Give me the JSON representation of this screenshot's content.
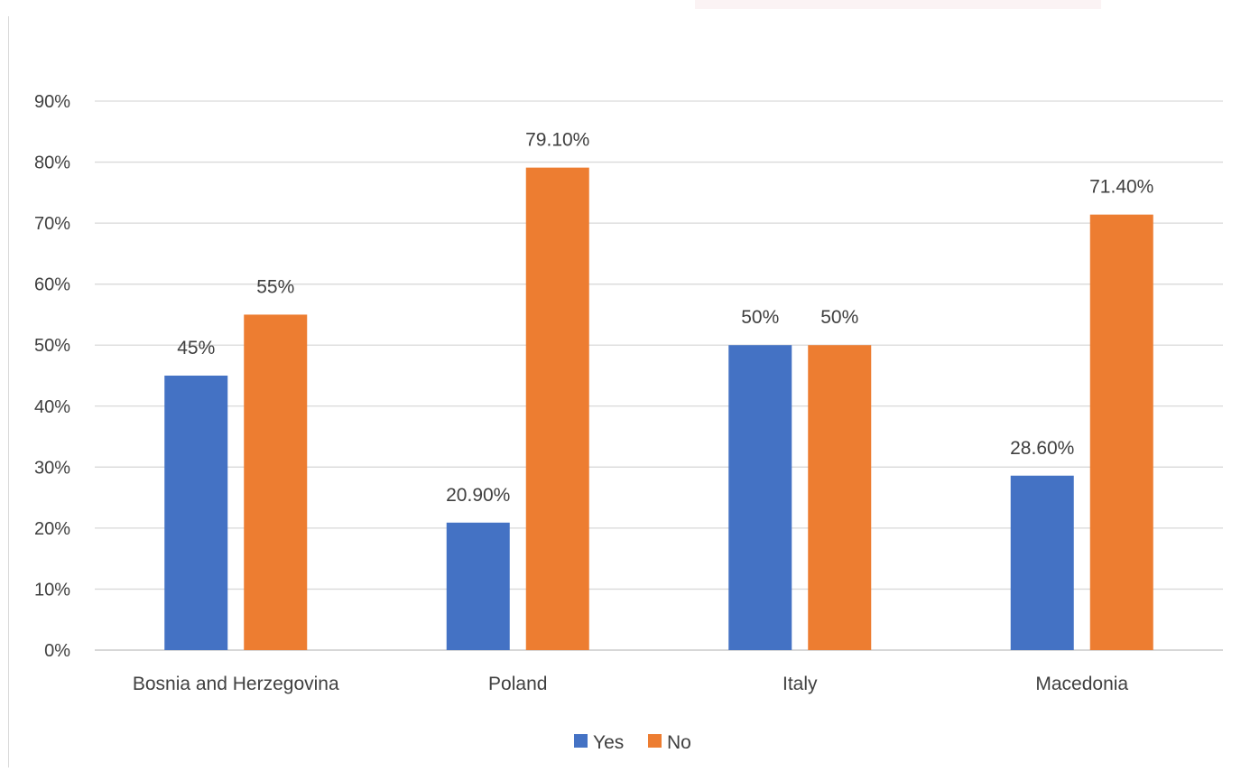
{
  "chart_data": {
    "type": "bar",
    "categories": [
      "Bosnia and Herzegovina",
      "Poland",
      "Italy",
      "Macedonia"
    ],
    "series": [
      {
        "name": "Yes",
        "color": "#4472c4",
        "values": [
          45,
          20.9,
          50,
          28.6
        ],
        "labels": [
          "45%",
          "20.90%",
          "50%",
          "28.60%"
        ]
      },
      {
        "name": "No",
        "color": "#ed7d31",
        "values": [
          55,
          79.1,
          50,
          71.4
        ],
        "labels": [
          "55%",
          "79.10%",
          "50%",
          "71.40%"
        ]
      }
    ],
    "ylim": [
      0,
      90
    ],
    "yticks": [
      0,
      10,
      20,
      30,
      40,
      50,
      60,
      70,
      80,
      90
    ],
    "ytick_labels": [
      "0%",
      "10%",
      "20%",
      "30%",
      "40%",
      "50%",
      "60%",
      "70%",
      "80%",
      "90%"
    ],
    "grid": true,
    "legend": "bottom-center"
  }
}
